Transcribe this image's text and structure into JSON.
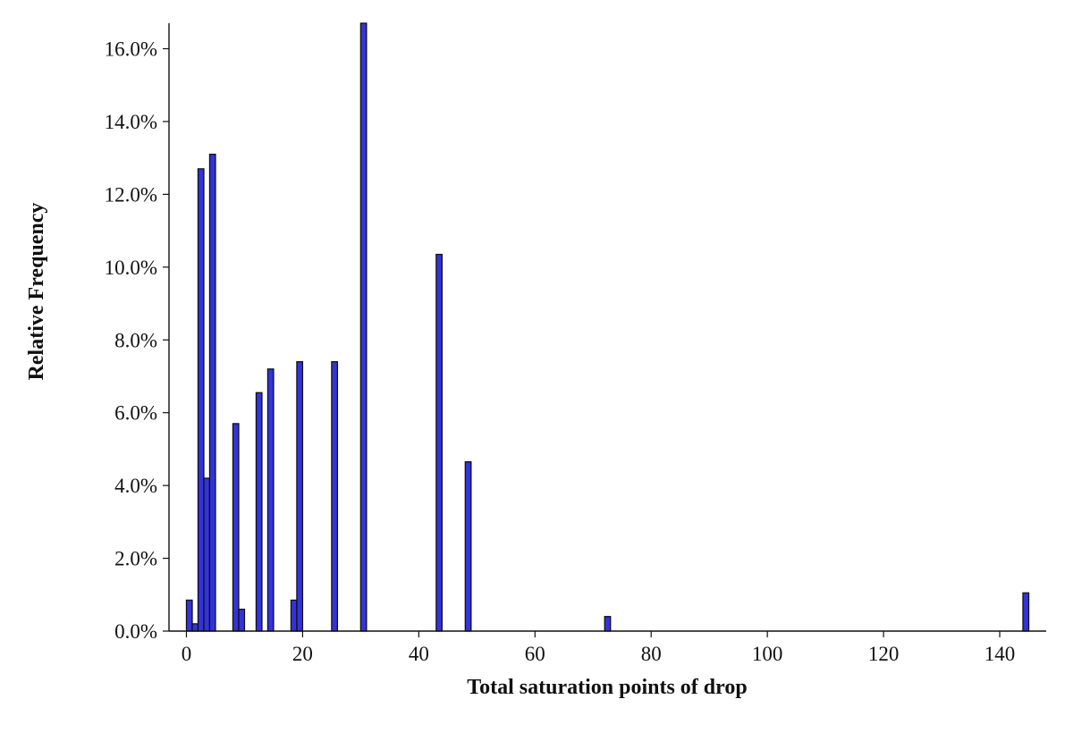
{
  "chart_data": {
    "type": "bar",
    "xlabel": "Total saturation points of drop",
    "ylabel": "Relative Frequency",
    "xlim": [
      -3,
      148
    ],
    "ylim": [
      0,
      16.7
    ],
    "grid": false,
    "bar_color": "#3333dd",
    "bar_edge_color": "#111111",
    "bin_width": 1,
    "x_ticks": [
      {
        "value": 0,
        "label": "0"
      },
      {
        "value": 20,
        "label": "20"
      },
      {
        "value": 40,
        "label": "40"
      },
      {
        "value": 60,
        "label": "60"
      },
      {
        "value": 80,
        "label": "80"
      },
      {
        "value": 100,
        "label": "100"
      },
      {
        "value": 120,
        "label": "120"
      },
      {
        "value": 140,
        "label": "140"
      }
    ],
    "y_ticks": [
      {
        "value": 0,
        "label": "0.0%"
      },
      {
        "value": 2,
        "label": "2.0%"
      },
      {
        "value": 4,
        "label": "4.0%"
      },
      {
        "value": 6,
        "label": "6.0%"
      },
      {
        "value": 8,
        "label": "8.0%"
      },
      {
        "value": 10,
        "label": "10.0%"
      },
      {
        "value": 12,
        "label": "12.0%"
      },
      {
        "value": 14,
        "label": "14.0%"
      },
      {
        "value": 16,
        "label": "16.0%"
      }
    ],
    "bars": [
      {
        "x": 0,
        "value": 0.85
      },
      {
        "x": 1,
        "value": 0.2
      },
      {
        "x": 2,
        "value": 12.7
      },
      {
        "x": 3,
        "value": 4.2
      },
      {
        "x": 4,
        "value": 13.1
      },
      {
        "x": 8,
        "value": 5.7
      },
      {
        "x": 9,
        "value": 0.6
      },
      {
        "x": 12,
        "value": 6.55
      },
      {
        "x": 14,
        "value": 7.2
      },
      {
        "x": 18,
        "value": 0.85
      },
      {
        "x": 19,
        "value": 7.4
      },
      {
        "x": 25,
        "value": 7.4
      },
      {
        "x": 30,
        "value": 16.7
      },
      {
        "x": 43,
        "value": 10.35
      },
      {
        "x": 48,
        "value": 4.65
      },
      {
        "x": 72,
        "value": 0.4
      },
      {
        "x": 144,
        "value": 1.05
      }
    ]
  }
}
